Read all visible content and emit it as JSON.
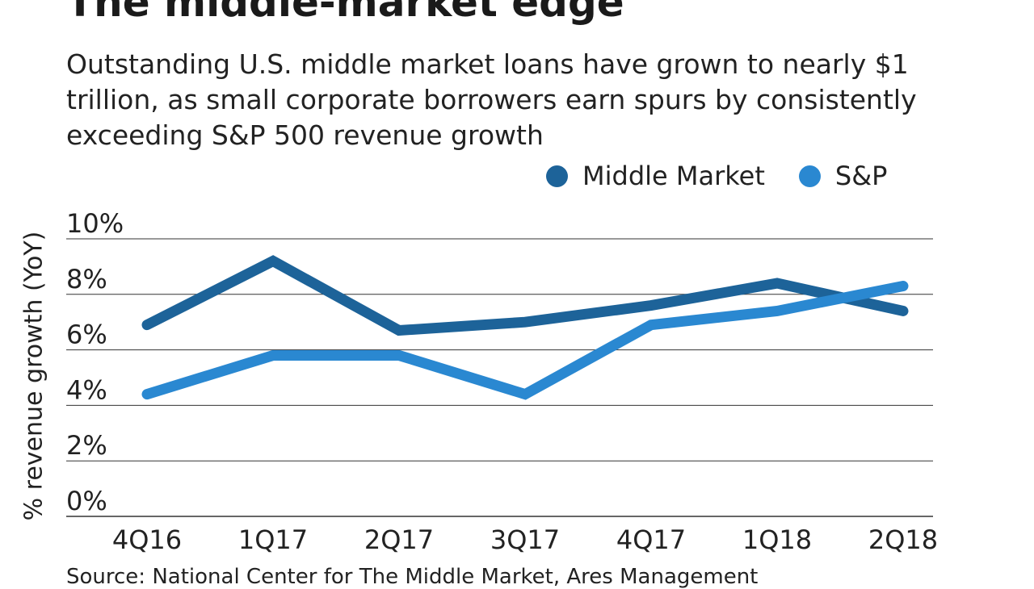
{
  "title": "The middle-market edge",
  "subtitle": "Outstanding U.S. middle market loans have grown to nearly $1 trillion, as small corporate borrowers earn spurs by consistently exceeding S&P 500 revenue growth",
  "source": "Source: National Center for The Middle Market, Ares Management",
  "colors": {
    "middle_market": "#1d6399",
    "sp": "#2a88d1",
    "grid": "#333333"
  },
  "chart_data": {
    "type": "line",
    "title": "The middle-market edge",
    "xlabel": "",
    "ylabel": "% revenue growth (YoY)",
    "categories": [
      "4Q16",
      "1Q17",
      "2Q17",
      "3Q17",
      "4Q17",
      "1Q18",
      "2Q18"
    ],
    "ylim": [
      0,
      10
    ],
    "yticks": [
      0,
      2,
      4,
      6,
      8,
      10
    ],
    "ytick_labels": [
      "0%",
      "2%",
      "4%",
      "6%",
      "8%",
      "10%"
    ],
    "grid": true,
    "legend_position": "top-right",
    "series": [
      {
        "name": "Middle Market",
        "color": "#1d6399",
        "values": [
          6.9,
          9.2,
          6.7,
          7.0,
          7.6,
          8.4,
          7.4
        ]
      },
      {
        "name": "S&P",
        "color": "#2a88d1",
        "values": [
          4.4,
          5.8,
          5.8,
          4.4,
          6.9,
          7.4,
          8.3
        ]
      }
    ]
  }
}
